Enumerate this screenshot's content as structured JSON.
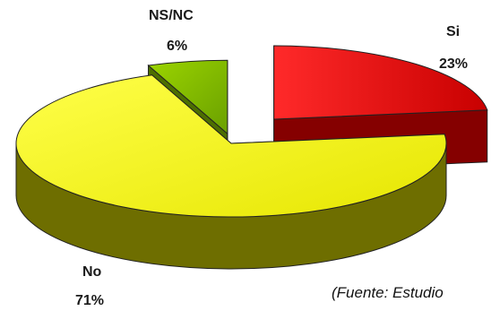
{
  "chart_data": {
    "type": "pie",
    "style": "3d-exploded",
    "slices": [
      {
        "label": "Si",
        "value": 23,
        "value_label": "23%",
        "color": "#dd0000"
      },
      {
        "label": "No",
        "value": 71,
        "value_label": "71%",
        "color": "#f5f500"
      },
      {
        "label": "NS/NC",
        "value": 6,
        "value_label": "6%",
        "color": "#7fb800"
      }
    ]
  },
  "source_note": "(Fuente: Estudio"
}
